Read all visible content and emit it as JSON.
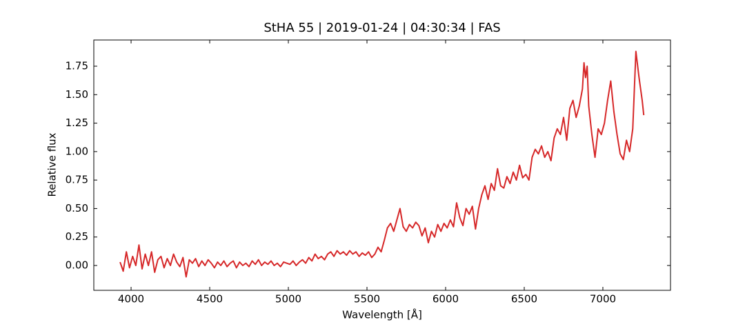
{
  "chart_data": {
    "type": "line",
    "title": "StHA 55 | 2019-01-24 | 04:30:34 | FAS",
    "x_label": "Wavelength [Å]",
    "y_label": "Relative flux",
    "xlim": [
      3763,
      7430
    ],
    "ylim": [
      -0.218,
      1.98
    ],
    "xticks": [
      4000,
      4500,
      5000,
      5500,
      6000,
      6500,
      7000
    ],
    "yticks": [
      {
        "value": 0,
        "label": "0.00"
      },
      {
        "value": 0.25,
        "label": "0.25"
      },
      {
        "value": 0.5,
        "label": "0.50"
      },
      {
        "value": 0.75,
        "label": "0.75"
      },
      {
        "value": 1,
        "label": "1.00"
      },
      {
        "value": 1.25,
        "label": "1.25"
      },
      {
        "value": 1.5,
        "label": "1.50"
      },
      {
        "value": 1.75,
        "label": "1.75"
      }
    ],
    "x": [
      3930,
      3950,
      3970,
      3990,
      4010,
      4030,
      4050,
      4070,
      4090,
      4110,
      4130,
      4150,
      4170,
      4190,
      4210,
      4230,
      4250,
      4270,
      4290,
      4310,
      4330,
      4350,
      4370,
      4390,
      4410,
      4430,
      4450,
      4470,
      4490,
      4510,
      4530,
      4550,
      4570,
      4590,
      4610,
      4630,
      4650,
      4670,
      4690,
      4710,
      4730,
      4750,
      4770,
      4790,
      4810,
      4830,
      4850,
      4870,
      4890,
      4910,
      4930,
      4950,
      4970,
      4990,
      5010,
      5030,
      5050,
      5070,
      5090,
      5110,
      5130,
      5150,
      5170,
      5190,
      5210,
      5230,
      5250,
      5270,
      5290,
      5310,
      5330,
      5350,
      5370,
      5390,
      5410,
      5430,
      5450,
      5470,
      5490,
      5510,
      5530,
      5550,
      5570,
      5590,
      5610,
      5630,
      5650,
      5670,
      5690,
      5710,
      5730,
      5750,
      5770,
      5790,
      5810,
      5830,
      5850,
      5870,
      5890,
      5910,
      5930,
      5950,
      5970,
      5990,
      6010,
      6030,
      6050,
      6070,
      6090,
      6110,
      6130,
      6150,
      6170,
      6190,
      6210,
      6230,
      6250,
      6270,
      6290,
      6310,
      6330,
      6350,
      6370,
      6390,
      6410,
      6430,
      6450,
      6470,
      6490,
      6510,
      6530,
      6550,
      6570,
      6590,
      6610,
      6630,
      6650,
      6670,
      6690,
      6710,
      6730,
      6750,
      6770,
      6790,
      6810,
      6830,
      6850,
      6870,
      6880,
      6890,
      6900,
      6910,
      6930,
      6950,
      6970,
      6990,
      7010,
      7030,
      7050,
      7070,
      7090,
      7110,
      7130,
      7150,
      7170,
      7190,
      7210,
      7230,
      7250,
      7260
    ],
    "series": [
      {
        "color": "#d62728",
        "values": [
          0.03,
          -0.05,
          0.12,
          -0.02,
          0.08,
          0.0,
          0.18,
          -0.03,
          0.1,
          0.0,
          0.12,
          -0.06,
          0.05,
          0.08,
          -0.02,
          0.06,
          0.0,
          0.1,
          0.03,
          -0.01,
          0.07,
          -0.1,
          0.05,
          0.02,
          0.06,
          -0.01,
          0.04,
          0.0,
          0.05,
          0.02,
          -0.02,
          0.03,
          0.0,
          0.04,
          -0.01,
          0.02,
          0.04,
          -0.02,
          0.03,
          0.0,
          0.02,
          -0.01,
          0.04,
          0.01,
          0.05,
          0.0,
          0.03,
          0.01,
          0.04,
          0.0,
          0.02,
          -0.01,
          0.03,
          0.02,
          0.01,
          0.04,
          0.0,
          0.03,
          0.05,
          0.02,
          0.07,
          0.04,
          0.1,
          0.06,
          0.08,
          0.05,
          0.1,
          0.12,
          0.08,
          0.13,
          0.1,
          0.12,
          0.09,
          0.13,
          0.1,
          0.12,
          0.08,
          0.11,
          0.09,
          0.12,
          0.07,
          0.1,
          0.16,
          0.12,
          0.22,
          0.33,
          0.37,
          0.3,
          0.4,
          0.5,
          0.34,
          0.3,
          0.36,
          0.33,
          0.38,
          0.35,
          0.26,
          0.33,
          0.2,
          0.3,
          0.25,
          0.36,
          0.3,
          0.37,
          0.33,
          0.4,
          0.34,
          0.55,
          0.42,
          0.35,
          0.5,
          0.45,
          0.52,
          0.32,
          0.5,
          0.62,
          0.7,
          0.58,
          0.72,
          0.66,
          0.85,
          0.7,
          0.68,
          0.78,
          0.72,
          0.82,
          0.75,
          0.88,
          0.77,
          0.8,
          0.75,
          0.95,
          1.02,
          0.98,
          1.05,
          0.95,
          1.0,
          0.92,
          1.12,
          1.2,
          1.15,
          1.3,
          1.1,
          1.38,
          1.45,
          1.3,
          1.4,
          1.55,
          1.78,
          1.65,
          1.75,
          1.4,
          1.15,
          0.95,
          1.2,
          1.15,
          1.25,
          1.45,
          1.62,
          1.35,
          1.15,
          0.98,
          0.93,
          1.1,
          1.0,
          1.2,
          1.88,
          1.65,
          1.45,
          1.32
        ]
      }
    ]
  }
}
